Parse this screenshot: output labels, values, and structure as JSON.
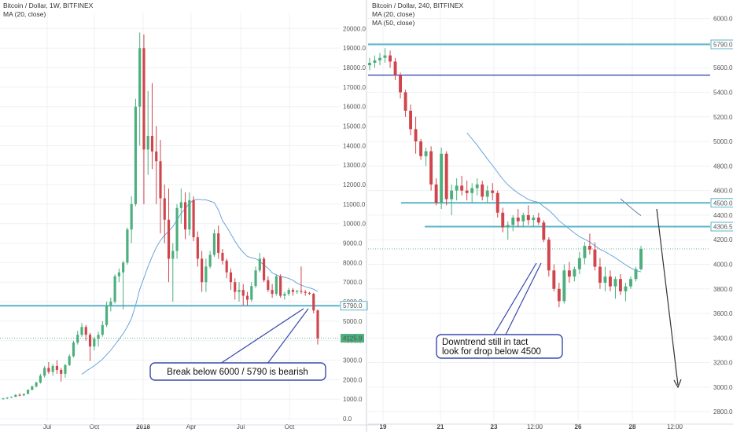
{
  "chart_data": [
    {
      "type": "candlestick",
      "title": "Bitcoin / Dollar, 1W, BITFINEX",
      "indicator": "MA (20, close)",
      "ylim": [
        0,
        20500
      ],
      "yticks": [
        "0.0",
        "1000.0",
        "2000.0",
        "3000.0",
        "4000.0",
        "5000.0",
        "6000.0",
        "7000.0",
        "8000.0",
        "9000.0",
        "10000.0",
        "11000.0",
        "12000.0",
        "13000.0",
        "14000.0",
        "15000.0",
        "16000.0",
        "17000.0",
        "18000.0",
        "19000.0",
        "20000.0"
      ],
      "xticks": [
        "Jul",
        "Oct",
        "2018",
        "Apr",
        "Jul",
        "Oct"
      ],
      "levels": [
        {
          "value": 5790,
          "label": "5790.0",
          "color": "#5ab4c9"
        }
      ],
      "last_price": {
        "value": 4125,
        "label": "4125.9",
        "color": "#4caf7d"
      },
      "annotation": "Break below 6000 / 5790 is bearish",
      "candles": [
        [
          1000,
          1060,
          980,
          1040
        ],
        [
          1040,
          1100,
          1000,
          1080
        ],
        [
          1080,
          1130,
          1060,
          1120
        ],
        [
          1120,
          1250,
          1100,
          1220
        ],
        [
          1220,
          1300,
          1150,
          1200
        ],
        [
          1200,
          1280,
          1150,
          1270
        ],
        [
          1270,
          1500,
          1250,
          1480
        ],
        [
          1480,
          1700,
          1450,
          1650
        ],
        [
          1650,
          1900,
          1600,
          1850
        ],
        [
          1850,
          2300,
          1800,
          2200
        ],
        [
          2200,
          2700,
          2100,
          2600
        ],
        [
          2600,
          2900,
          2300,
          2400
        ],
        [
          2400,
          2800,
          2200,
          2700
        ],
        [
          2700,
          3000,
          2300,
          2500
        ],
        [
          2500,
          2600,
          1900,
          2300
        ],
        [
          2300,
          2800,
          2100,
          2750
        ],
        [
          2750,
          3300,
          2700,
          3200
        ],
        [
          3200,
          4000,
          3150,
          3900
        ],
        [
          3900,
          4500,
          3800,
          4300
        ],
        [
          4300,
          4900,
          4200,
          4700
        ],
        [
          4700,
          4800,
          4000,
          4300
        ],
        [
          4300,
          4400,
          2950,
          3700
        ],
        [
          3700,
          4200,
          3500,
          4100
        ],
        [
          4100,
          4450,
          3700,
          4300
        ],
        [
          4300,
          5000,
          4200,
          4800
        ],
        [
          4800,
          6000,
          4700,
          5800
        ],
        [
          5800,
          6200,
          5500,
          6000
        ],
        [
          6000,
          7400,
          5900,
          7300
        ],
        [
          7300,
          7700,
          7000,
          7500
        ],
        [
          7500,
          8100,
          5600,
          8000
        ],
        [
          8000,
          9800,
          7900,
          9700
        ],
        [
          9700,
          11400,
          9000,
          11000
        ],
        [
          11000,
          16400,
          10900,
          16000
        ],
        [
          16000,
          19800,
          14000,
          19000
        ],
        [
          19000,
          19700,
          11000,
          13800
        ],
        [
          13800,
          16800,
          12500,
          14500
        ],
        [
          14500,
          17200,
          12800,
          13700
        ],
        [
          13700,
          15000,
          11000,
          13200
        ],
        [
          13200,
          14300,
          9500,
          11300
        ],
        [
          11300,
          12000,
          9000,
          10200
        ],
        [
          10200,
          11800,
          7000,
          8200
        ],
        [
          8200,
          9000,
          6000,
          8600
        ],
        [
          8600,
          11000,
          8200,
          10800
        ],
        [
          10800,
          11800,
          10000,
          11100
        ],
        [
          11100,
          11600,
          9200,
          9700
        ],
        [
          9700,
          11600,
          9400,
          11200
        ],
        [
          11200,
          11400,
          9100,
          9300
        ],
        [
          9300,
          9600,
          7800,
          8200
        ],
        [
          8200,
          8600,
          6500,
          7000
        ],
        [
          7000,
          8200,
          6500,
          7800
        ],
        [
          7800,
          8600,
          7700,
          8400
        ],
        [
          8400,
          9700,
          8300,
          9500
        ],
        [
          9500,
          9900,
          8200,
          8500
        ],
        [
          8500,
          8700,
          7900,
          8100
        ],
        [
          8100,
          8200,
          7200,
          7500
        ],
        [
          7500,
          7700,
          6600,
          7000
        ],
        [
          7000,
          7200,
          6100,
          6500
        ],
        [
          6500,
          7000,
          6000,
          6600
        ],
        [
          6600,
          6900,
          5800,
          6300
        ],
        [
          6300,
          6500,
          5800,
          6100
        ],
        [
          6100,
          7000,
          6000,
          6800
        ],
        [
          6800,
          7800,
          6700,
          7600
        ],
        [
          7600,
          8500,
          7500,
          8200
        ],
        [
          8200,
          8300,
          7000,
          7100
        ],
        [
          7100,
          7300,
          6500,
          6600
        ],
        [
          6600,
          6900,
          6200,
          6400
        ],
        [
          6400,
          7400,
          6300,
          7300
        ],
        [
          7300,
          7400,
          6200,
          6300
        ],
        [
          6300,
          6500,
          6100,
          6400
        ],
        [
          6400,
          6700,
          6300,
          6600
        ],
        [
          6600,
          6700,
          6300,
          6500
        ],
        [
          6500,
          6600,
          6400,
          6550
        ],
        [
          6550,
          7800,
          6400,
          6500
        ],
        [
          6500,
          6600,
          6300,
          6450
        ],
        [
          6450,
          6500,
          6350,
          6400
        ],
        [
          6400,
          6450,
          5400,
          5550
        ],
        [
          5550,
          5600,
          3800,
          4125
        ]
      ]
    },
    {
      "type": "candlestick",
      "title": "Bitcoin / Dollar, 240, BITFINEX",
      "indicators": [
        "MA (20, close)",
        "MA (50, close)"
      ],
      "ylim": [
        2750,
        6100
      ],
      "yticks": [
        "2800.0",
        "3000.0",
        "3200.0",
        "3400.0",
        "3600.0",
        "3800.0",
        "4000.0",
        "4200.0",
        "4400.0",
        "4600.0",
        "4800.0",
        "5000.0",
        "5200.0",
        "5400.0",
        "5600.0",
        "5800.0",
        "6000.0"
      ],
      "xticks": [
        "19",
        "21",
        "23",
        "12:00",
        "26",
        "28",
        "12:00"
      ],
      "levels": [
        {
          "value": 5790,
          "label": "5790.0",
          "color": "#5ab4c9"
        },
        {
          "value": 5540,
          "label": "",
          "color": "#2c3aa8"
        },
        {
          "value": 4500,
          "label": "4500.0",
          "color": "#5ab4c9"
        },
        {
          "value": 4306.5,
          "label": "4306.5",
          "color": "#5ab4c9"
        }
      ],
      "last_price_value": 4125,
      "annotation": [
        "Downtrend still in tact",
        "look for drop below 4500"
      ],
      "candles": [
        [
          5620,
          5680,
          5580,
          5640
        ],
        [
          5640,
          5700,
          5600,
          5660
        ],
        [
          5660,
          5720,
          5620,
          5680
        ],
        [
          5680,
          5760,
          5640,
          5700
        ],
        [
          5700,
          5740,
          5600,
          5650
        ],
        [
          5650,
          5680,
          5500,
          5540
        ],
        [
          5540,
          5560,
          5350,
          5400
        ],
        [
          5400,
          5420,
          5200,
          5250
        ],
        [
          5250,
          5300,
          5050,
          5100
        ],
        [
          5100,
          5200,
          4900,
          5000
        ],
        [
          5000,
          5020,
          4850,
          4880
        ],
        [
          4880,
          4950,
          4800,
          4920
        ],
        [
          4920,
          4960,
          4600,
          4650
        ],
        [
          4650,
          4700,
          4480,
          4500
        ],
        [
          4500,
          4950,
          4450,
          4900
        ],
        [
          4900,
          4920,
          4480,
          4530
        ],
        [
          4530,
          4650,
          4400,
          4600
        ],
        [
          4600,
          4700,
          4520,
          4640
        ],
        [
          4640,
          4720,
          4560,
          4600
        ],
        [
          4600,
          4680,
          4520,
          4580
        ],
        [
          4580,
          4660,
          4500,
          4620
        ],
        [
          4620,
          4700,
          4560,
          4650
        ],
        [
          4650,
          4680,
          4520,
          4550
        ],
        [
          4550,
          4640,
          4500,
          4600
        ],
        [
          4600,
          4660,
          4520,
          4580
        ],
        [
          4580,
          4600,
          4380,
          4420
        ],
        [
          4420,
          4460,
          4260,
          4300
        ],
        [
          4300,
          4350,
          4200,
          4320
        ],
        [
          4320,
          4400,
          4270,
          4380
        ],
        [
          4380,
          4450,
          4300,
          4350
        ],
        [
          4350,
          4420,
          4300,
          4400
        ],
        [
          4400,
          4480,
          4320,
          4360
        ],
        [
          4360,
          4400,
          4300,
          4380
        ],
        [
          4380,
          4420,
          4320,
          4340
        ],
        [
          4340,
          4360,
          4180,
          4200
        ],
        [
          4200,
          4220,
          3900,
          3950
        ],
        [
          3950,
          4000,
          3780,
          3800
        ],
        [
          3800,
          3850,
          3650,
          3700
        ],
        [
          3700,
          4000,
          3680,
          3950
        ],
        [
          3950,
          4020,
          3850,
          3900
        ],
        [
          3900,
          3980,
          3860,
          3960
        ],
        [
          3960,
          4100,
          3920,
          4050
        ],
        [
          4050,
          4180,
          4000,
          4150
        ],
        [
          4150,
          4250,
          4080,
          4120
        ],
        [
          4120,
          4180,
          3950,
          3980
        ],
        [
          3980,
          4050,
          3800,
          3850
        ],
        [
          3850,
          3980,
          3780,
          3900
        ],
        [
          3900,
          3950,
          3780,
          3820
        ],
        [
          3820,
          3900,
          3720,
          3880
        ],
        [
          3880,
          3920,
          3750,
          3780
        ],
        [
          3780,
          3850,
          3700,
          3820
        ],
        [
          3820,
          3900,
          3800,
          3880
        ],
        [
          3880,
          3980,
          3860,
          3960
        ],
        [
          3960,
          4150,
          3950,
          4125
        ]
      ]
    }
  ]
}
